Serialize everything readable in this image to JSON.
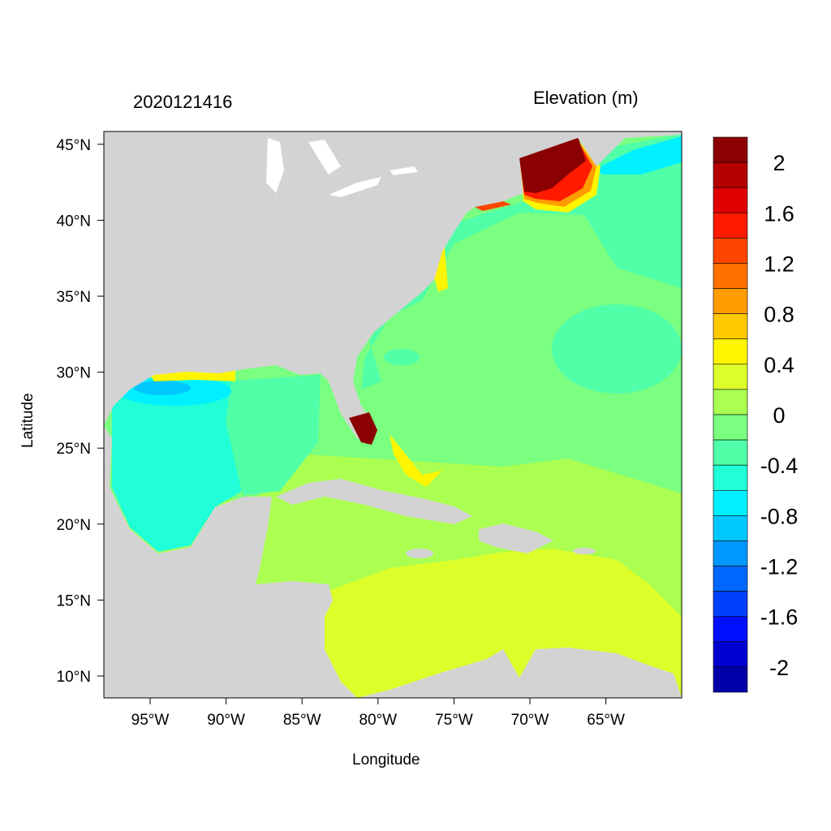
{
  "title_left": "2020121416",
  "title_right": "Elevation (m)",
  "xlabel": "Longitude",
  "ylabel": "Latitude",
  "x_ticks": [
    "95°W",
    "90°W",
    "85°W",
    "80°W",
    "75°W",
    "70°W",
    "65°W"
  ],
  "y_ticks": [
    "10°N",
    "15°N",
    "20°N",
    "25°N",
    "30°N",
    "35°N",
    "40°N",
    "45°N"
  ],
  "colorbar": {
    "labels": [
      "2",
      "1.6",
      "1.2",
      "0.8",
      "0.4",
      "0",
      "-0.4",
      "-0.8",
      "-1.2",
      "-1.6",
      "-2"
    ],
    "colors": [
      "#8b0000",
      "#b40000",
      "#e00000",
      "#ff1a00",
      "#ff4600",
      "#ff7000",
      "#ff9c00",
      "#ffc800",
      "#fff500",
      "#dcff2a",
      "#aaff50",
      "#7aff80",
      "#50ffa8",
      "#20ffd8",
      "#00f0ff",
      "#00c8ff",
      "#0098ff",
      "#0068ff",
      "#0040ff",
      "#0010ff",
      "#0000d0",
      "#0000a8"
    ]
  },
  "colors": {
    "land": "#d3d3d3",
    "lakes": "#ffffff"
  }
}
